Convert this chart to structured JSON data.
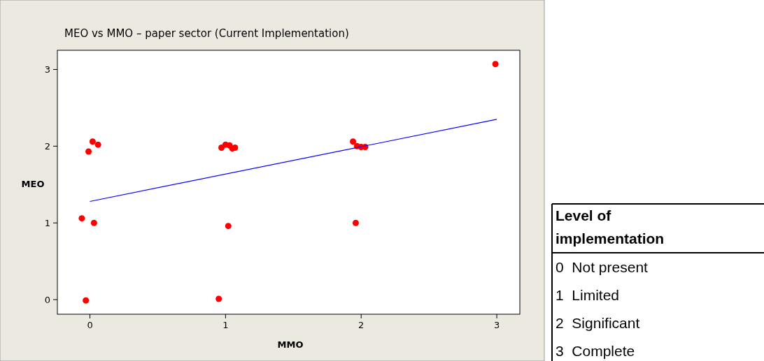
{
  "chart_data": {
    "type": "scatter",
    "title": "MEO vs MMO – paper sector (Current Implementation)",
    "xlabel": "MMO",
    "ylabel": "MEO",
    "xlim": [
      -0.24,
      3.17
    ],
    "ylim": [
      -0.19,
      3.25
    ],
    "xticks": [
      0,
      1,
      2,
      3
    ],
    "yticks": [
      0,
      1,
      2,
      3
    ],
    "grid": false,
    "series": [
      {
        "marker": "circle",
        "color": "#ff0000",
        "x": [
          -0.06,
          -0.01,
          0.02,
          0.06,
          0.03,
          -0.03,
          0.97,
          1.0,
          1.03,
          1.05,
          1.07,
          1.02,
          0.95,
          1.94,
          1.97,
          2.0,
          2.03,
          1.96,
          2.99
        ],
        "values": [
          1.06,
          1.93,
          2.06,
          2.02,
          1.0,
          -0.01,
          1.98,
          2.02,
          2.01,
          1.97,
          1.98,
          0.96,
          0.01,
          2.06,
          2.0,
          1.99,
          1.99,
          1.0,
          3.07
        ]
      },
      {
        "type": "line",
        "color": "#0000ff",
        "x": [
          0,
          3
        ],
        "values": [
          1.28,
          2.35
        ],
        "line_style": "solid"
      }
    ],
    "annotations": [
      "Level of implementation",
      "0  Not present",
      "1  Limited",
      "2  Significant",
      "3  Complete"
    ]
  }
}
